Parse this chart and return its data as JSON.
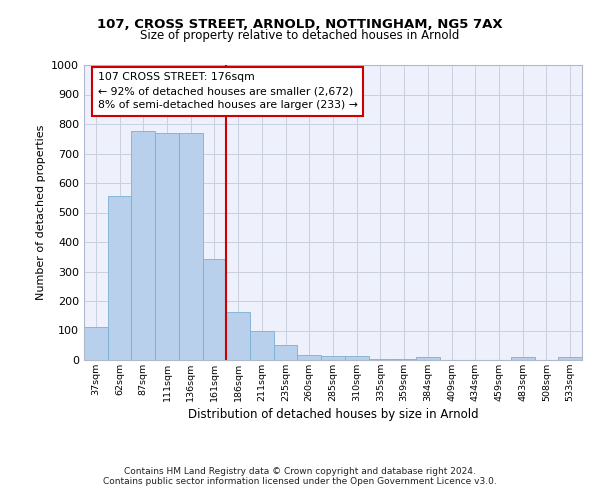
{
  "title1": "107, CROSS STREET, ARNOLD, NOTTINGHAM, NG5 7AX",
  "title2": "Size of property relative to detached houses in Arnold",
  "xlabel": "Distribution of detached houses by size in Arnold",
  "ylabel": "Number of detached properties",
  "categories": [
    "37sqm",
    "62sqm",
    "87sqm",
    "111sqm",
    "136sqm",
    "161sqm",
    "186sqm",
    "211sqm",
    "235sqm",
    "260sqm",
    "285sqm",
    "310sqm",
    "335sqm",
    "359sqm",
    "384sqm",
    "409sqm",
    "434sqm",
    "459sqm",
    "483sqm",
    "508sqm",
    "533sqm"
  ],
  "values": [
    112,
    557,
    776,
    771,
    770,
    342,
    163,
    97,
    52,
    18,
    14,
    14,
    5,
    5,
    11,
    0,
    0,
    0,
    9,
    0,
    9
  ],
  "bar_color": "#b8d0eb",
  "bar_edge_color": "#7aafd4",
  "vline_color": "#cc0000",
  "vline_pos": 5.5,
  "ann_line1": "107 CROSS STREET: 176sqm",
  "ann_line2": "← 92% of detached houses are smaller (2,672)",
  "ann_line3": "8% of semi-detached houses are larger (233) →",
  "ann_box_color": "#cc0000",
  "ylim": [
    0,
    1000
  ],
  "yticks": [
    0,
    100,
    200,
    300,
    400,
    500,
    600,
    700,
    800,
    900,
    1000
  ],
  "footer1": "Contains HM Land Registry data © Crown copyright and database right 2024.",
  "footer2": "Contains public sector information licensed under the Open Government Licence v3.0.",
  "bg_color": "#eef1fb",
  "grid_color": "#c8d0e0"
}
